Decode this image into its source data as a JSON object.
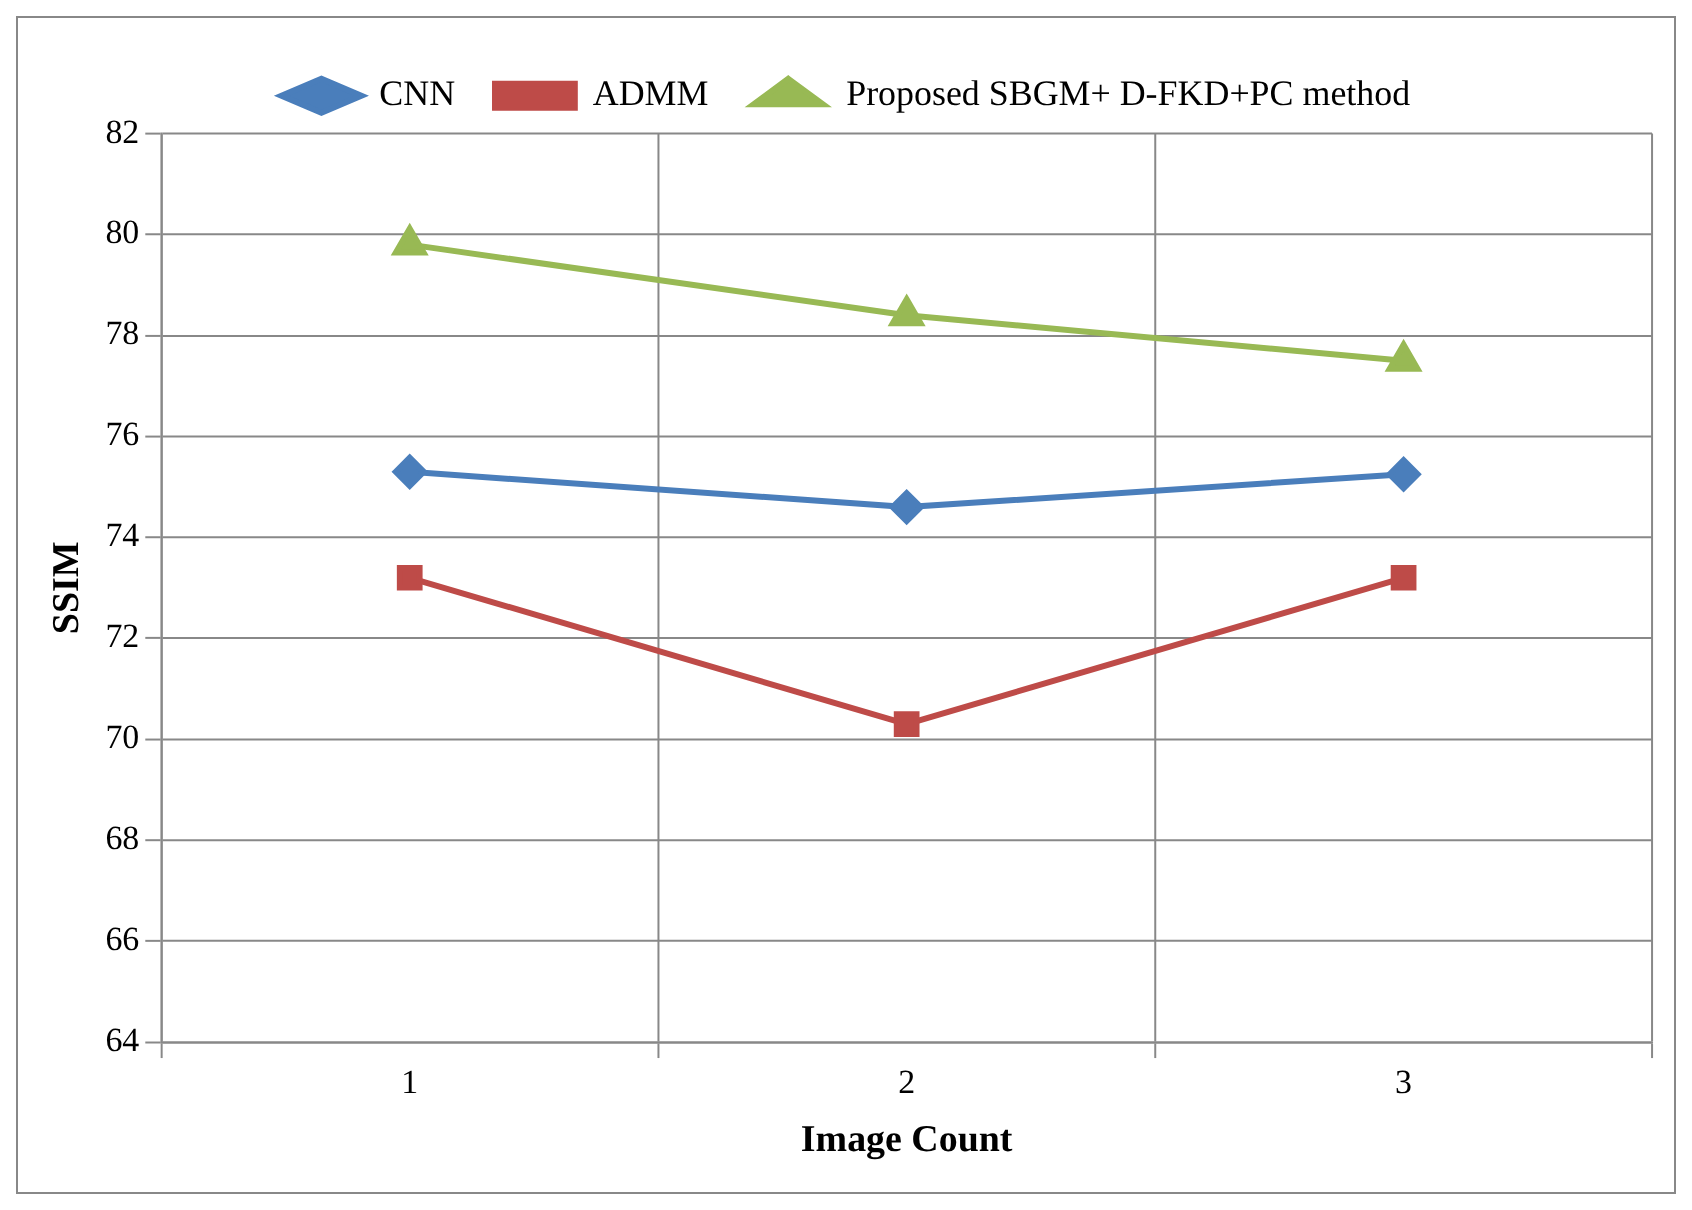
{
  "chart_data": {
    "type": "line",
    "xlabel": "Image Count",
    "ylabel": "SSIM",
    "categories": [
      "1",
      "2",
      "3"
    ],
    "series": [
      {
        "name": "CNN",
        "color": "#4a7ebb",
        "marker": "diamond",
        "values": [
          75.3,
          74.6,
          75.25
        ]
      },
      {
        "name": "ADMM",
        "color": "#be4b48",
        "marker": "square",
        "values": [
          73.2,
          70.3,
          73.2
        ]
      },
      {
        "name": "Proposed SBGM+ D-FKD+PC method",
        "color": "#98b954",
        "marker": "triangle",
        "values": [
          79.8,
          78.4,
          77.5
        ]
      }
    ],
    "ylim": [
      64,
      82
    ],
    "yticks": [
      64,
      66,
      68,
      70,
      72,
      74,
      76,
      78,
      80,
      82
    ],
    "grid": true,
    "legend": "top"
  }
}
